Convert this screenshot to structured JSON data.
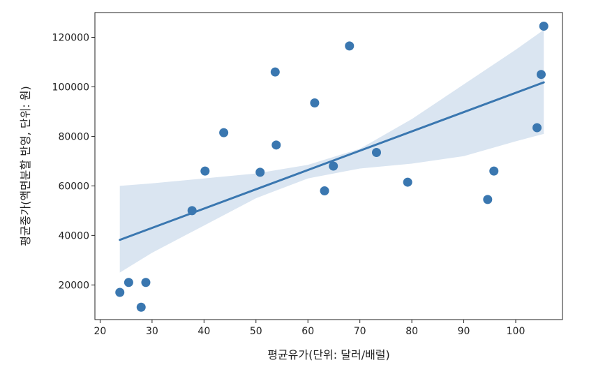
{
  "chart_data": {
    "type": "scatter",
    "xlabel": "평균유가(단위: 달러/배럴)",
    "ylabel": "평균종가(액면분할 반영, 단위: 원)",
    "xlim": [
      19,
      109
    ],
    "ylim": [
      6000,
      130000
    ],
    "xticks": [
      20,
      30,
      40,
      50,
      60,
      70,
      80,
      90,
      100
    ],
    "yticks": [
      20000,
      40000,
      60000,
      80000,
      100000,
      120000
    ],
    "xtick_labels": [
      "20",
      "30",
      "40",
      "50",
      "60",
      "70",
      "80",
      "90",
      "100"
    ],
    "ytick_labels": [
      "20000",
      "40000",
      "60000",
      "80000",
      "100000",
      "120000"
    ],
    "grid": false,
    "colors": {
      "points": "#3a77b0",
      "regression_line": "#3a77b0",
      "confidence_band": "#dae5f1"
    },
    "points": [
      {
        "x": 23.8,
        "y": 17000
      },
      {
        "x": 25.5,
        "y": 21000
      },
      {
        "x": 27.9,
        "y": 11000
      },
      {
        "x": 28.8,
        "y": 21000
      },
      {
        "x": 37.7,
        "y": 50000
      },
      {
        "x": 40.2,
        "y": 66000
      },
      {
        "x": 43.8,
        "y": 81500
      },
      {
        "x": 50.8,
        "y": 65500
      },
      {
        "x": 53.7,
        "y": 106000
      },
      {
        "x": 53.9,
        "y": 76500
      },
      {
        "x": 61.3,
        "y": 93500
      },
      {
        "x": 63.2,
        "y": 58000
      },
      {
        "x": 64.9,
        "y": 68000
      },
      {
        "x": 68.0,
        "y": 116500
      },
      {
        "x": 73.2,
        "y": 73500
      },
      {
        "x": 79.2,
        "y": 61500
      },
      {
        "x": 94.6,
        "y": 54500
      },
      {
        "x": 95.8,
        "y": 66000
      },
      {
        "x": 104.1,
        "y": 83500
      },
      {
        "x": 104.9,
        "y": 105000
      },
      {
        "x": 105.4,
        "y": 124500
      }
    ],
    "regression": {
      "x": [
        23.8,
        105.4
      ],
      "y": [
        38200,
        101800
      ]
    },
    "confidence_band": {
      "x": [
        23.8,
        30,
        40,
        50,
        60,
        70,
        80,
        90,
        100,
        105.4
      ],
      "lower": [
        25000,
        33000,
        44000,
        55000,
        63000,
        67000,
        69000,
        72000,
        78000,
        81000
      ],
      "upper": [
        60000,
        61000,
        63000,
        65000,
        68500,
        75000,
        87000,
        101000,
        115000,
        123000
      ]
    }
  }
}
